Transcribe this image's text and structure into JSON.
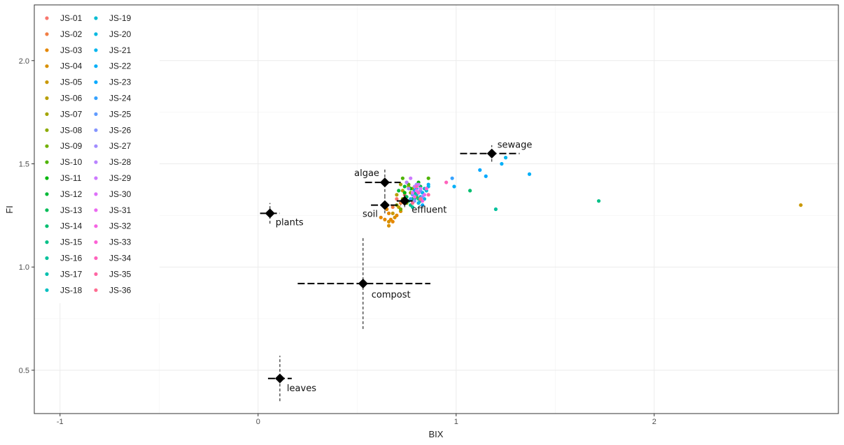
{
  "chart_data": {
    "type": "scatter",
    "title": "",
    "xlabel": "BIX",
    "ylabel": "FI",
    "xlim": [
      -1.13,
      2.93
    ],
    "ylim": [
      0.29,
      2.27
    ],
    "x_ticks": [
      -1,
      0,
      1,
      2
    ],
    "x_tick_labels": [
      "-1",
      "0",
      "1",
      "2"
    ],
    "y_ticks": [
      0.5,
      1.0,
      1.5,
      2.0
    ],
    "y_tick_labels": [
      "0.5",
      "1.0",
      "1.5",
      "2.0"
    ],
    "grid": true,
    "legend_position": "top-left",
    "legend": [
      {
        "name": "JS-01",
        "color": "#F8766D"
      },
      {
        "name": "JS-02",
        "color": "#F17F45"
      },
      {
        "name": "JS-03",
        "color": "#E58700"
      },
      {
        "name": "JS-04",
        "color": "#D89000"
      },
      {
        "name": "JS-05",
        "color": "#C99800"
      },
      {
        "name": "JS-06",
        "color": "#B89F00"
      },
      {
        "name": "JS-07",
        "color": "#A3A500"
      },
      {
        "name": "JS-08",
        "color": "#8CAB00"
      },
      {
        "name": "JS-09",
        "color": "#72B000"
      },
      {
        "name": "JS-10",
        "color": "#4FB400"
      },
      {
        "name": "JS-11",
        "color": "#00B70C"
      },
      {
        "name": "JS-12",
        "color": "#00BA38"
      },
      {
        "name": "JS-13",
        "color": "#00BC58"
      },
      {
        "name": "JS-14",
        "color": "#00BE70"
      },
      {
        "name": "JS-15",
        "color": "#00C087"
      },
      {
        "name": "JS-16",
        "color": "#00C19C"
      },
      {
        "name": "JS-17",
        "color": "#00C0AF"
      },
      {
        "name": "JS-18",
        "color": "#00BFC1"
      },
      {
        "name": "JS-19",
        "color": "#00BCD2"
      },
      {
        "name": "JS-20",
        "color": "#00B9E1"
      },
      {
        "name": "JS-21",
        "color": "#00B5EE"
      },
      {
        "name": "JS-22",
        "color": "#00AFF8"
      },
      {
        "name": "JS-23",
        "color": "#00A9FF"
      },
      {
        "name": "JS-24",
        "color": "#35A2FF"
      },
      {
        "name": "JS-25",
        "color": "#619CFF"
      },
      {
        "name": "JS-26",
        "color": "#8494FF"
      },
      {
        "name": "JS-27",
        "color": "#A18CFF"
      },
      {
        "name": "JS-28",
        "color": "#B983FF"
      },
      {
        "name": "JS-29",
        "color": "#CD79FF"
      },
      {
        "name": "JS-30",
        "color": "#DE70F9"
      },
      {
        "name": "JS-31",
        "color": "#EB69F0"
      },
      {
        "name": "JS-32",
        "color": "#F564E3"
      },
      {
        "name": "JS-33",
        "color": "#FC61D5"
      },
      {
        "name": "JS-34",
        "color": "#FF62BC"
      },
      {
        "name": "JS-35",
        "color": "#FF67A4"
      },
      {
        "name": "JS-36",
        "color": "#FF6C91"
      }
    ],
    "reference_sources": [
      {
        "label": "sewage",
        "x": 1.18,
        "y": 1.55,
        "x_range": [
          1.02,
          1.32
        ],
        "y_range": [
          1.51,
          1.59
        ]
      },
      {
        "label": "algae",
        "x": 0.64,
        "y": 1.41,
        "x_range": [
          0.54,
          0.72
        ],
        "y_range": [
          1.34,
          1.48
        ]
      },
      {
        "label": "soil",
        "x": 0.64,
        "y": 1.3,
        "x_range": [
          0.57,
          0.72
        ],
        "y_range": [
          1.26,
          1.34
        ]
      },
      {
        "label": "effluent",
        "x": 0.74,
        "y": 1.32,
        "x_range": [
          0.7,
          0.78
        ],
        "y_range": [
          1.29,
          1.35
        ]
      },
      {
        "label": "plants",
        "x": 0.06,
        "y": 1.26,
        "x_range": [
          0.01,
          0.11
        ],
        "y_range": [
          1.21,
          1.31
        ]
      },
      {
        "label": "compost",
        "x": 0.53,
        "y": 0.92,
        "x_range": [
          0.2,
          0.87
        ],
        "y_range": [
          0.7,
          1.15
        ]
      },
      {
        "label": "leaves",
        "x": 0.11,
        "y": 0.46,
        "x_range": [
          0.05,
          0.17
        ],
        "y_range": [
          0.35,
          0.57
        ]
      }
    ],
    "series": [
      {
        "name": "JS-01",
        "points": [
          [
            0.7,
            1.33
          ],
          [
            0.74,
            1.35
          ]
        ]
      },
      {
        "name": "JS-02",
        "points": [
          [
            0.68,
            1.29
          ],
          [
            0.72,
            1.31
          ]
        ]
      },
      {
        "name": "JS-03",
        "points": [
          [
            0.62,
            1.24
          ],
          [
            0.66,
            1.26
          ],
          [
            0.67,
            1.23
          ],
          [
            0.7,
            1.25
          ],
          [
            0.65,
            1.28
          ],
          [
            0.68,
            1.22
          ],
          [
            0.64,
            1.23
          ]
        ]
      },
      {
        "name": "JS-04",
        "points": [
          [
            0.66,
            1.22
          ],
          [
            0.69,
            1.24
          ],
          [
            0.72,
            1.27
          ],
          [
            0.66,
            1.2
          ]
        ]
      },
      {
        "name": "JS-05",
        "points": [
          [
            0.68,
            1.26
          ],
          [
            0.71,
            1.29
          ],
          [
            0.74,
            1.32
          ],
          [
            2.74,
            1.3
          ]
        ]
      },
      {
        "name": "JS-06",
        "points": [
          [
            0.7,
            1.35
          ],
          [
            0.73,
            1.37
          ],
          [
            0.76,
            1.39
          ]
        ]
      },
      {
        "name": "JS-07",
        "points": [
          [
            0.72,
            1.4
          ],
          [
            0.75,
            1.41
          ],
          [
            0.78,
            1.38
          ]
        ]
      },
      {
        "name": "JS-08",
        "points": [
          [
            0.7,
            1.3
          ],
          [
            0.73,
            1.33
          ],
          [
            0.77,
            1.36
          ]
        ]
      },
      {
        "name": "JS-09",
        "points": [
          [
            0.72,
            1.28
          ],
          [
            0.75,
            1.31
          ],
          [
            0.8,
            1.34
          ]
        ]
      },
      {
        "name": "JS-10",
        "points": [
          [
            0.73,
            1.43
          ],
          [
            0.76,
            1.4
          ],
          [
            0.86,
            1.43
          ]
        ]
      },
      {
        "name": "JS-11",
        "points": [
          [
            0.74,
            1.36
          ],
          [
            0.77,
            1.38
          ],
          [
            0.81,
            1.41
          ]
        ]
      },
      {
        "name": "JS-12",
        "points": [
          [
            0.71,
            1.37
          ],
          [
            0.74,
            1.39
          ],
          [
            0.78,
            1.33
          ]
        ]
      },
      {
        "name": "JS-13",
        "points": [
          [
            0.75,
            1.34
          ],
          [
            0.79,
            1.36
          ],
          [
            0.82,
            1.39
          ]
        ]
      },
      {
        "name": "JS-14",
        "points": [
          [
            0.76,
            1.32
          ],
          [
            0.8,
            1.35
          ],
          [
            1.07,
            1.37
          ]
        ]
      },
      {
        "name": "JS-15",
        "points": [
          [
            0.77,
            1.3
          ],
          [
            0.81,
            1.33
          ],
          [
            1.72,
            1.32
          ]
        ]
      },
      {
        "name": "JS-16",
        "points": [
          [
            0.78,
            1.29
          ],
          [
            0.82,
            1.32
          ],
          [
            1.2,
            1.28
          ]
        ]
      },
      {
        "name": "JS-17",
        "points": [
          [
            0.79,
            1.33
          ],
          [
            0.83,
            1.36
          ]
        ]
      },
      {
        "name": "JS-18",
        "points": [
          [
            0.8,
            1.35
          ],
          [
            0.84,
            1.38
          ]
        ]
      },
      {
        "name": "JS-19",
        "points": [
          [
            0.82,
            1.34
          ],
          [
            0.85,
            1.37
          ]
        ]
      },
      {
        "name": "JS-20",
        "points": [
          [
            0.81,
            1.31
          ],
          [
            0.84,
            1.33
          ]
        ]
      },
      {
        "name": "JS-21",
        "points": [
          [
            0.83,
            1.36
          ],
          [
            0.86,
            1.39
          ],
          [
            1.25,
            1.53
          ]
        ]
      },
      {
        "name": "JS-22",
        "points": [
          [
            0.8,
            1.38
          ],
          [
            0.86,
            1.4
          ],
          [
            0.99,
            1.39
          ],
          [
            1.23,
            1.5
          ],
          [
            1.37,
            1.45
          ]
        ]
      },
      {
        "name": "JS-23",
        "points": [
          [
            0.79,
            1.37
          ],
          [
            0.83,
            1.3
          ],
          [
            1.12,
            1.47
          ],
          [
            1.15,
            1.44
          ]
        ]
      },
      {
        "name": "JS-24",
        "points": [
          [
            0.77,
            1.33
          ],
          [
            0.81,
            1.36
          ],
          [
            0.98,
            1.43
          ]
        ]
      },
      {
        "name": "JS-25",
        "points": [
          [
            0.78,
            1.35
          ],
          [
            0.82,
            1.37
          ]
        ]
      },
      {
        "name": "JS-26",
        "points": [
          [
            0.79,
            1.32
          ],
          [
            0.83,
            1.34
          ]
        ]
      },
      {
        "name": "JS-27",
        "points": [
          [
            0.76,
            1.38
          ],
          [
            0.8,
            1.4
          ]
        ]
      },
      {
        "name": "JS-28",
        "points": [
          [
            0.75,
            1.41
          ],
          [
            0.79,
            1.39
          ]
        ]
      },
      {
        "name": "JS-29",
        "points": [
          [
            0.77,
            1.43
          ],
          [
            0.81,
            1.4
          ]
        ]
      },
      {
        "name": "JS-30",
        "points": [
          [
            0.78,
            1.36
          ],
          [
            0.82,
            1.38
          ]
        ]
      },
      {
        "name": "JS-31",
        "points": [
          [
            0.8,
            1.37
          ],
          [
            0.84,
            1.35
          ]
        ]
      },
      {
        "name": "JS-32",
        "points": [
          [
            0.79,
            1.34
          ],
          [
            0.83,
            1.32
          ]
        ]
      },
      {
        "name": "JS-33",
        "points": [
          [
            0.81,
            1.36
          ],
          [
            0.85,
            1.38
          ]
        ]
      },
      {
        "name": "JS-34",
        "points": [
          [
            0.8,
            1.39
          ],
          [
            0.95,
            1.41
          ]
        ]
      },
      {
        "name": "JS-35",
        "points": [
          [
            0.82,
            1.33
          ],
          [
            0.86,
            1.35
          ]
        ]
      },
      {
        "name": "JS-36",
        "points": [
          [
            0.78,
            1.31
          ],
          [
            0.82,
            1.33
          ]
        ]
      }
    ]
  }
}
